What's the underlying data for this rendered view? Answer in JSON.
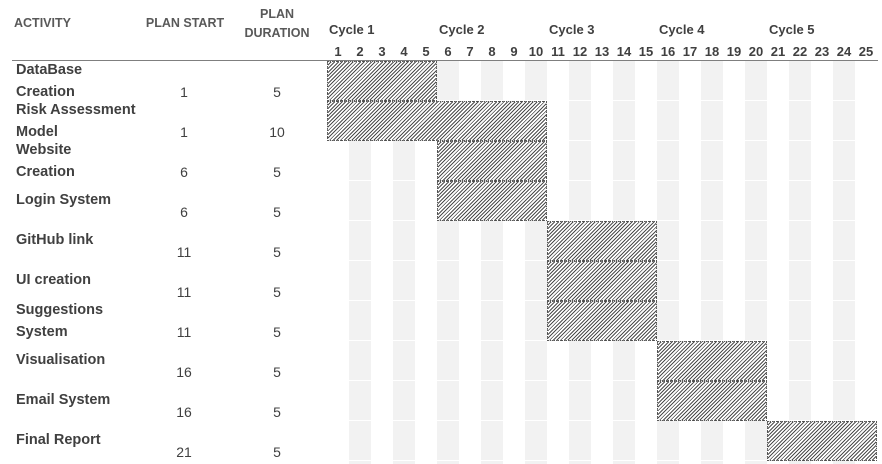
{
  "headers": {
    "activity": "ACTIVITY",
    "plan_start": "PLAN START",
    "plan_duration_line1": "PLAN",
    "plan_duration_line2": "DURATION"
  },
  "cycles": [
    "Cycle 1",
    "Cycle 2",
    "Cycle 3",
    "Cycle 4",
    "Cycle 5"
  ],
  "periods": [
    "1",
    "2",
    "3",
    "4",
    "5",
    "6",
    "7",
    "8",
    "9",
    "10",
    "11",
    "12",
    "13",
    "14",
    "15",
    "16",
    "17",
    "18",
    "19",
    "20",
    "21",
    "22",
    "23",
    "24",
    "25"
  ],
  "chart_data": {
    "type": "gantt",
    "x": {
      "min": 1,
      "max": 25,
      "label": ""
    },
    "tasks": [
      {
        "name_lines": [
          "DataBase",
          "Creation"
        ],
        "start": 1,
        "duration": 5,
        "start_label": "1",
        "duration_label": "5"
      },
      {
        "name_lines": [
          "Risk Assessment",
          "Model"
        ],
        "start": 1,
        "duration": 10,
        "start_label": "1",
        "duration_label": "10"
      },
      {
        "name_lines": [
          "Website",
          "Creation"
        ],
        "start": 6,
        "duration": 5,
        "start_label": "6",
        "duration_label": "5"
      },
      {
        "name_lines": [
          "Login System"
        ],
        "start": 6,
        "duration": 5,
        "start_label": "6",
        "duration_label": "5"
      },
      {
        "name_lines": [
          "GitHub link"
        ],
        "start": 11,
        "duration": 5,
        "start_label": "11",
        "duration_label": "5"
      },
      {
        "name_lines": [
          "UI creation"
        ],
        "start": 11,
        "duration": 5,
        "start_label": "11",
        "duration_label": "5"
      },
      {
        "name_lines": [
          "Suggestions",
          "System"
        ],
        "start": 11,
        "duration": 5,
        "start_label": "11",
        "duration_label": "5"
      },
      {
        "name_lines": [
          "Visualisation"
        ],
        "start": 16,
        "duration": 5,
        "start_label": "16",
        "duration_label": "5"
      },
      {
        "name_lines": [
          "Email System"
        ],
        "start": 16,
        "duration": 5,
        "start_label": "16",
        "duration_label": "5"
      },
      {
        "name_lines": [
          "Final Report"
        ],
        "start": 21,
        "duration": 5,
        "start_label": "21",
        "duration_label": "5"
      }
    ]
  }
}
